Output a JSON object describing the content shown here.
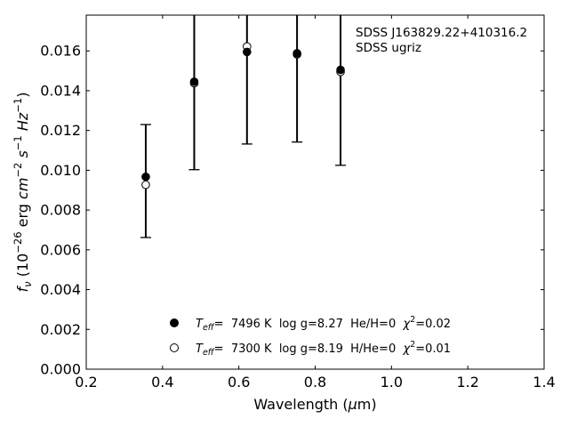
{
  "chart_data": {
    "type": "scatter",
    "xlabel_main": "Wavelength (",
    "xlabel_mu": "μ",
    "xlabel_tail": "m)",
    "ylabel_main": "f",
    "ylabel_sub": "ν",
    "ylabel_open": " (10",
    "ylabel_exp1": "−26",
    "ylabel_erg": " erg ",
    "ylabel_cm": "cm",
    "ylabel_exp2": "−2",
    "ylabel_s": " s",
    "ylabel_exp3": "−1",
    "ylabel_hz": " Hz",
    "ylabel_exp4": "−1",
    "ylabel_close": ")",
    "xlim": [
      0.2,
      1.4
    ],
    "ylim": [
      0.0,
      0.0178
    ],
    "x_ticks": [
      "0.2",
      "0.4",
      "0.6",
      "0.8",
      "1.0",
      "1.2",
      "1.4"
    ],
    "y_ticks": [
      "0.000",
      "0.002",
      "0.004",
      "0.006",
      "0.008",
      "0.010",
      "0.012",
      "0.014",
      "0.016"
    ],
    "annotation": [
      "SDSS J163829.22+410316.2",
      "SDSS ugriz"
    ],
    "observed": {
      "x": [
        0.356,
        0.483,
        0.6213,
        0.7525,
        0.8665
      ],
      "y": [
        0.00967,
        0.01445,
        0.01595,
        0.01588,
        0.01505
      ],
      "err_low": [
        0.00662,
        0.01003,
        0.01132,
        0.01142,
        0.01025
      ],
      "err_high": [
        0.0123,
        0.0178,
        0.0178,
        0.0178,
        0.0178
      ]
    },
    "model": {
      "x": [
        0.356,
        0.483,
        0.6213,
        0.7525,
        0.8665
      ],
      "y": [
        0.00927,
        0.01438,
        0.01622,
        0.01583,
        0.01495
      ]
    },
    "legend": [
      {
        "marker": "filled",
        "t": "T",
        "sub": "eff",
        "rest": "=  7496 K  log g=8.27  He/H=0  ",
        "chi": "χ",
        "chi_sup": "2",
        "chi_val": "=0.02"
      },
      {
        "marker": "open",
        "t": "T",
        "sub": "eff",
        "rest": "=  7300 K  log g=8.19  H/He=0  ",
        "chi": "χ",
        "chi_sup": "2",
        "chi_val": "=0.01"
      }
    ],
    "legend_position": "bottom-center",
    "grid": false
  }
}
